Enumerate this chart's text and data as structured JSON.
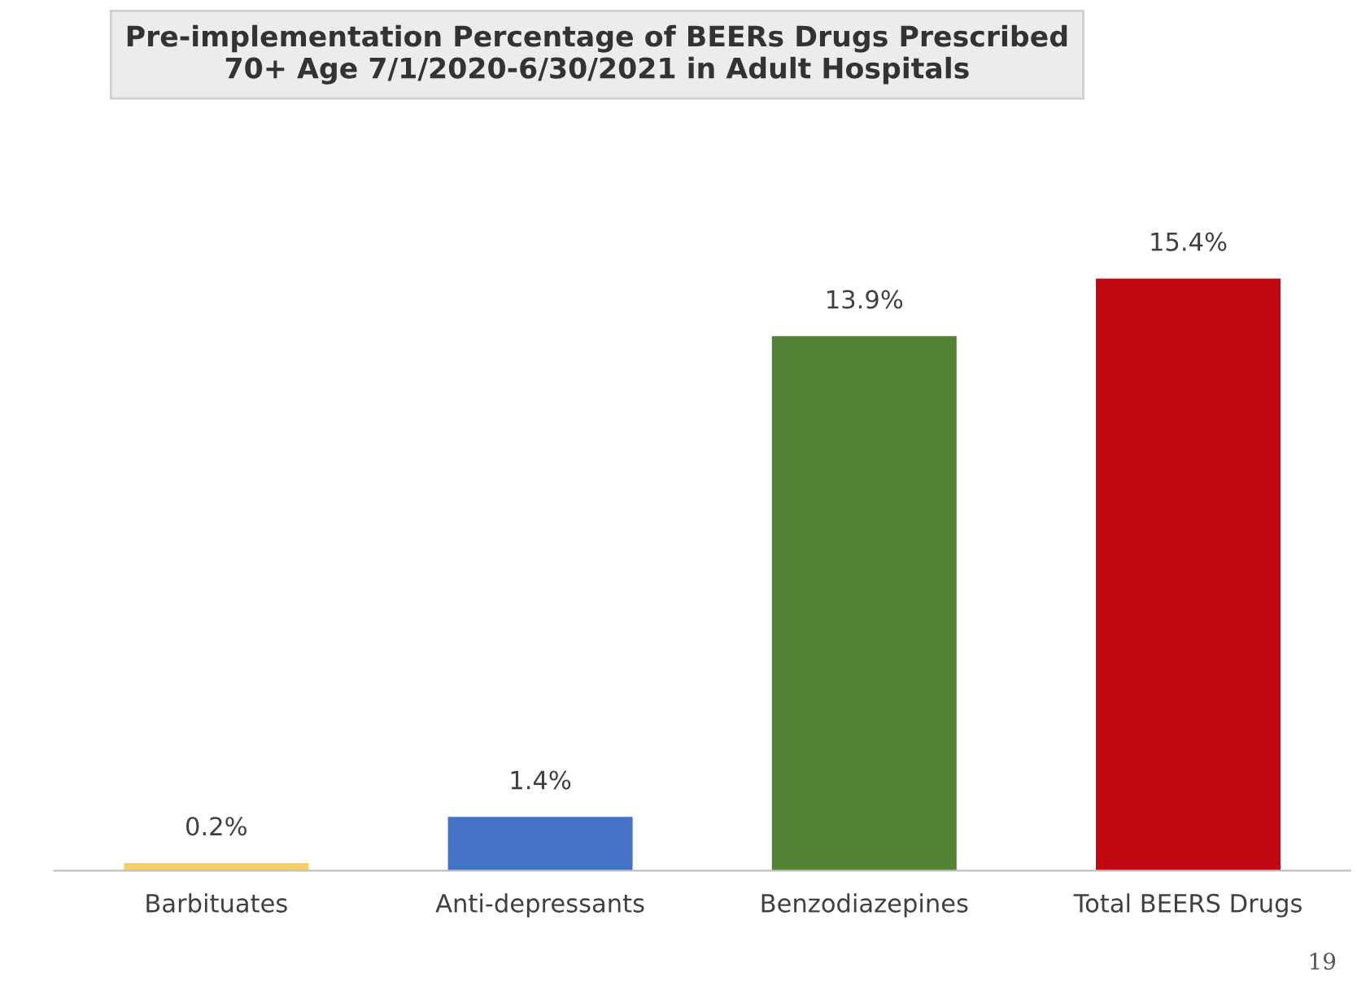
{
  "chart_data": {
    "type": "bar",
    "title": "Pre-implementation Percentage of BEERs Drugs Prescribed\n70+ Age 7/1/2020-6/30/2021 in Adult Hospitals",
    "categories": [
      "Barbituates",
      "Anti-depressants",
      "Benzodiazepines",
      "Total BEERS Drugs"
    ],
    "values": [
      0.2,
      1.4,
      13.9,
      15.4
    ],
    "colors": [
      "#f5d06a",
      "#4472c4",
      "#548235",
      "#c00712"
    ],
    "value_labels": [
      "0.2%",
      "1.4%",
      "13.9%",
      "15.4%"
    ],
    "annotations": [
      "19"
    ],
    "grid": false,
    "legend": false
  }
}
